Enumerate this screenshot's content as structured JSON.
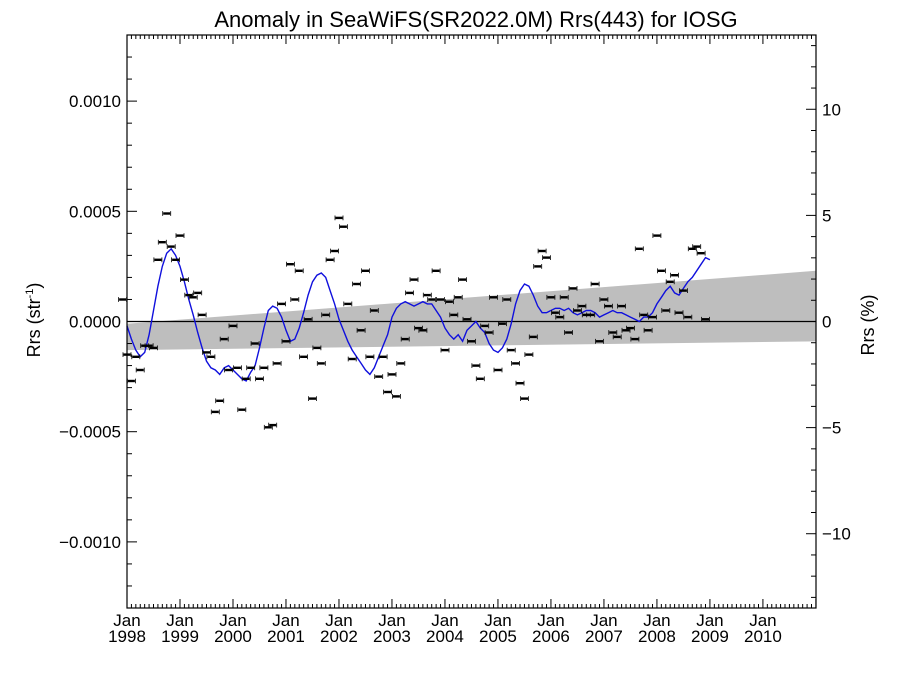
{
  "chart_data": {
    "type": "scatter",
    "title": "Anomaly in SeaWiFS(SR2022.0M) Rrs(443) for IOSG",
    "ylabel_left": "Rrs (str",
    "ylabel_left_sup": "-1",
    "ylabel_left_end": ")",
    "ylabel_right": "Rrs (%)",
    "xlim": [
      "1998-01-01",
      "2010-12-31"
    ],
    "ylim_left": [
      -0.0013,
      0.0013
    ],
    "ylim_right": [
      -13.5,
      13.5
    ],
    "grid": false,
    "legend": "none",
    "x_ticks": [
      {
        "month": "Jan",
        "year": "1998",
        "date": "1998-01-01"
      },
      {
        "month": "Jan",
        "year": "1999",
        "date": "1999-01-01"
      },
      {
        "month": "Jan",
        "year": "2000",
        "date": "2000-01-01"
      },
      {
        "month": "Jan",
        "year": "2001",
        "date": "2001-01-01"
      },
      {
        "month": "Jan",
        "year": "2002",
        "date": "2002-01-01"
      },
      {
        "month": "Jan",
        "year": "2003",
        "date": "2003-01-01"
      },
      {
        "month": "Jan",
        "year": "2004",
        "date": "2004-01-01"
      },
      {
        "month": "Jan",
        "year": "2005",
        "date": "2005-01-01"
      },
      {
        "month": "Jan",
        "year": "2006",
        "date": "2006-01-01"
      },
      {
        "month": "Jan",
        "year": "2007",
        "date": "2007-01-01"
      },
      {
        "month": "Jan",
        "year": "2008",
        "date": "2008-01-01"
      },
      {
        "month": "Jan",
        "year": "2009",
        "date": "2009-01-01"
      },
      {
        "month": "Jan",
        "year": "2010",
        "date": "2010-01-01"
      }
    ],
    "y_ticks_left": [
      {
        "value": 0.001,
        "label": "0.0010"
      },
      {
        "value": 0.0005,
        "label": "0.0005"
      },
      {
        "value": 0.0,
        "label": "0.0000"
      },
      {
        "value": -0.0005,
        "label": "−0.0005"
      },
      {
        "value": -0.001,
        "label": "−0.0010"
      }
    ],
    "y_ticks_right": [
      {
        "value": 10,
        "label": "10"
      },
      {
        "value": 5,
        "label": "5"
      },
      {
        "value": 0,
        "label": "0"
      },
      {
        "value": -5,
        "label": "−5"
      },
      {
        "value": -10,
        "label": "−10"
      }
    ],
    "trend_band": {
      "x": [
        "1998-01-01",
        "2010-12-31"
      ],
      "upper": [
        -1e-05,
        0.00023
      ],
      "lower": [
        -0.00013,
        -9e-05
      ]
    },
    "colors": {
      "running_mean": "#1010dd",
      "band": "#bebebe",
      "points": "#000000",
      "zero_line": "#000000"
    },
    "points": [
      {
        "x": "1997-12",
        "y": 0.0001
      },
      {
        "x": "1998-01",
        "y": -0.00015
      },
      {
        "x": "1998-02",
        "y": -0.00027
      },
      {
        "x": "1998-03",
        "y": -0.00016
      },
      {
        "x": "1998-04",
        "y": -0.00022
      },
      {
        "x": "1998-05",
        "y": -0.00011
      },
      {
        "x": "1998-06",
        "y": -0.00011
      },
      {
        "x": "1998-07",
        "y": -0.00012
      },
      {
        "x": "1998-08",
        "y": 0.00028
      },
      {
        "x": "1998-09",
        "y": 0.00036
      },
      {
        "x": "1998-10",
        "y": 0.00049
      },
      {
        "x": "1998-11",
        "y": 0.00034
      },
      {
        "x": "1998-12",
        "y": 0.00028
      },
      {
        "x": "1999-01",
        "y": 0.00039
      },
      {
        "x": "1999-02",
        "y": 0.00019
      },
      {
        "x": "1999-03",
        "y": 0.00012
      },
      {
        "x": "1999-04",
        "y": 0.00011
      },
      {
        "x": "1999-05",
        "y": 0.00013
      },
      {
        "x": "1999-06",
        "y": 3e-05
      },
      {
        "x": "1999-07",
        "y": -0.00014
      },
      {
        "x": "1999-08",
        "y": -0.00016
      },
      {
        "x": "1999-09",
        "y": -0.00041
      },
      {
        "x": "1999-10",
        "y": -0.00036
      },
      {
        "x": "1999-11",
        "y": -8e-05
      },
      {
        "x": "1999-12",
        "y": -0.00022
      },
      {
        "x": "2000-01",
        "y": -2e-05
      },
      {
        "x": "2000-02",
        "y": -0.00021
      },
      {
        "x": "2000-03",
        "y": -0.0004
      },
      {
        "x": "2000-04",
        "y": -0.00026
      },
      {
        "x": "2000-05",
        "y": -0.00021
      },
      {
        "x": "2000-06",
        "y": -0.0001
      },
      {
        "x": "2000-07",
        "y": -0.00026
      },
      {
        "x": "2000-08",
        "y": -0.00021
      },
      {
        "x": "2000-09",
        "y": -0.00048
      },
      {
        "x": "2000-10",
        "y": -0.00047
      },
      {
        "x": "2000-11",
        "y": -0.00019
      },
      {
        "x": "2000-12",
        "y": 8e-05
      },
      {
        "x": "2001-01",
        "y": -9e-05
      },
      {
        "x": "2001-02",
        "y": 0.00026
      },
      {
        "x": "2001-03",
        "y": 0.0001
      },
      {
        "x": "2001-04",
        "y": 0.00023
      },
      {
        "x": "2001-05",
        "y": -0.00016
      },
      {
        "x": "2001-06",
        "y": 1e-05
      },
      {
        "x": "2001-07",
        "y": -0.00035
      },
      {
        "x": "2001-08",
        "y": -0.00012
      },
      {
        "x": "2001-09",
        "y": -0.00019
      },
      {
        "x": "2001-10",
        "y": 3e-05
      },
      {
        "x": "2001-11",
        "y": 0.00028
      },
      {
        "x": "2001-12",
        "y": 0.00032
      },
      {
        "x": "2002-01",
        "y": 0.00047
      },
      {
        "x": "2002-02",
        "y": 0.00043
      },
      {
        "x": "2002-03",
        "y": 8e-05
      },
      {
        "x": "2002-04",
        "y": -0.00017
      },
      {
        "x": "2002-05",
        "y": 0.00017
      },
      {
        "x": "2002-06",
        "y": -4e-05
      },
      {
        "x": "2002-07",
        "y": 0.00023
      },
      {
        "x": "2002-08",
        "y": -0.00016
      },
      {
        "x": "2002-09",
        "y": 5e-05
      },
      {
        "x": "2002-10",
        "y": -0.00025
      },
      {
        "x": "2002-11",
        "y": -0.00016
      },
      {
        "x": "2002-12",
        "y": -0.00032
      },
      {
        "x": "2003-01",
        "y": -0.00024
      },
      {
        "x": "2003-02",
        "y": -0.00034
      },
      {
        "x": "2003-03",
        "y": -0.00019
      },
      {
        "x": "2003-04",
        "y": -8e-05
      },
      {
        "x": "2003-05",
        "y": 0.00013
      },
      {
        "x": "2003-06",
        "y": 0.00019
      },
      {
        "x": "2003-07",
        "y": -3e-05
      },
      {
        "x": "2003-08",
        "y": -4e-05
      },
      {
        "x": "2003-09",
        "y": 0.00012
      },
      {
        "x": "2003-10",
        "y": 0.0001
      },
      {
        "x": "2003-11",
        "y": 0.00023
      },
      {
        "x": "2003-12",
        "y": 0.0001
      },
      {
        "x": "2004-01",
        "y": -0.00013
      },
      {
        "x": "2004-02",
        "y": 9e-05
      },
      {
        "x": "2004-03",
        "y": 3e-05
      },
      {
        "x": "2004-04",
        "y": 0.00011
      },
      {
        "x": "2004-05",
        "y": 0.00019
      },
      {
        "x": "2004-06",
        "y": 1e-05
      },
      {
        "x": "2004-07",
        "y": -9e-05
      },
      {
        "x": "2004-08",
        "y": -0.0002
      },
      {
        "x": "2004-09",
        "y": -0.00026
      },
      {
        "x": "2004-10",
        "y": -2e-05
      },
      {
        "x": "2004-11",
        "y": -5e-05
      },
      {
        "x": "2004-12",
        "y": 0.00011
      },
      {
        "x": "2005-01",
        "y": -0.00022
      },
      {
        "x": "2005-02",
        "y": -1e-05
      },
      {
        "x": "2005-03",
        "y": 0.0001
      },
      {
        "x": "2005-04",
        "y": -0.00013
      },
      {
        "x": "2005-05",
        "y": -0.00019
      },
      {
        "x": "2005-06",
        "y": -0.00028
      },
      {
        "x": "2005-07",
        "y": -0.00035
      },
      {
        "x": "2005-08",
        "y": -0.00015
      },
      {
        "x": "2005-09",
        "y": -7e-05
      },
      {
        "x": "2005-10",
        "y": 0.00025
      },
      {
        "x": "2005-11",
        "y": 0.00032
      },
      {
        "x": "2005-12",
        "y": 0.00029
      },
      {
        "x": "2006-01",
        "y": 0.00011
      },
      {
        "x": "2006-02",
        "y": 4e-05
      },
      {
        "x": "2006-03",
        "y": 2e-05
      },
      {
        "x": "2006-04",
        "y": 0.00011
      },
      {
        "x": "2006-05",
        "y": -5e-05
      },
      {
        "x": "2006-06",
        "y": 0.00015
      },
      {
        "x": "2006-07",
        "y": 5e-05
      },
      {
        "x": "2006-08",
        "y": 7e-05
      },
      {
        "x": "2006-09",
        "y": 3e-05
      },
      {
        "x": "2006-10",
        "y": 3e-05
      },
      {
        "x": "2006-11",
        "y": 0.00017
      },
      {
        "x": "2006-12",
        "y": -9e-05
      },
      {
        "x": "2007-01",
        "y": 0.0001
      },
      {
        "x": "2007-02",
        "y": 7e-05
      },
      {
        "x": "2007-03",
        "y": -5e-05
      },
      {
        "x": "2007-04",
        "y": -7e-05
      },
      {
        "x": "2007-05",
        "y": 7e-05
      },
      {
        "x": "2007-06",
        "y": -4e-05
      },
      {
        "x": "2007-07",
        "y": -3e-05
      },
      {
        "x": "2007-08",
        "y": -8e-05
      },
      {
        "x": "2007-09",
        "y": 0.00033
      },
      {
        "x": "2007-10",
        "y": 3e-05
      },
      {
        "x": "2007-11",
        "y": -4e-05
      },
      {
        "x": "2007-12",
        "y": 2e-05
      },
      {
        "x": "2008-01",
        "y": 0.00039
      },
      {
        "x": "2008-02",
        "y": 0.00023
      },
      {
        "x": "2008-03",
        "y": 5e-05
      },
      {
        "x": "2008-04",
        "y": 0.00018
      },
      {
        "x": "2008-05",
        "y": 0.00021
      },
      {
        "x": "2008-06",
        "y": 4e-05
      },
      {
        "x": "2008-07",
        "y": 0.00014
      },
      {
        "x": "2008-08",
        "y": 2e-05
      },
      {
        "x": "2008-09",
        "y": 0.00033
      },
      {
        "x": "2008-10",
        "y": 0.00034
      },
      {
        "x": "2008-11",
        "y": 0.00031
      },
      {
        "x": "2008-12",
        "y": 1e-05
      }
    ],
    "running_mean": {
      "x_start": "1998-01",
      "step_months": 1,
      "y": [
        -2e-05,
        -8e-05,
        -0.00013,
        -0.00016,
        -0.00014,
        -6e-05,
        5e-05,
        0.00016,
        0.00025,
        0.00031,
        0.00033,
        0.0003,
        0.00025,
        0.00018,
        0.0001,
        3e-05,
        -5e-05,
        -0.00012,
        -0.00018,
        -0.00021,
        -0.00022,
        -0.00024,
        -0.00021,
        -0.0002,
        -0.00022,
        -0.00024,
        -0.00026,
        -0.00027,
        -0.00023,
        -0.0002,
        -0.00012,
        -3e-05,
        5e-05,
        7e-05,
        6e-05,
        2e-05,
        -4e-05,
        -9e-05,
        -8e-05,
        -3e-05,
        4e-05,
        0.00012,
        0.00018,
        0.00021,
        0.00022,
        0.0002,
        0.00014,
        8e-05,
        1e-05,
        -4e-05,
        -9e-05,
        -0.00013,
        -0.00016,
        -0.00019,
        -0.00022,
        -0.00024,
        -0.00021,
        -0.00016,
        -0.00011,
        -6e-05,
        2e-05,
        6e-05,
        8e-05,
        9e-05,
        8e-05,
        7e-05,
        8e-05,
        9e-05,
        8e-05,
        8e-05,
        5e-05,
        2e-05,
        -3e-05,
        -6e-05,
        -8e-05,
        -6e-05,
        -9e-05,
        -4e-05,
        -2e-05,
        0.0,
        -3e-05,
        -5e-05,
        -0.0001,
        -0.00013,
        -0.00014,
        -0.00012,
        -8e-05,
        -1e-05,
        8e-05,
        0.00014,
        0.00017,
        0.00016,
        0.00012,
        7e-05,
        4e-05,
        4e-05,
        5e-05,
        6e-05,
        6e-05,
        5e-05,
        6e-05,
        4e-05,
        3e-05,
        4e-05,
        5e-05,
        5e-05,
        4e-05,
        2e-05,
        3e-05,
        4e-05,
        5e-05,
        4e-05,
        4e-05,
        3e-05,
        2e-05,
        1e-05,
        0.0,
        2e-05,
        2e-05,
        4e-05,
        8e-05,
        0.00011,
        0.00014,
        0.00016,
        0.00013,
        0.00012,
        0.00015,
        0.00018,
        0.0002,
        0.00023,
        0.00026,
        0.00029,
        0.00028
      ]
    }
  }
}
